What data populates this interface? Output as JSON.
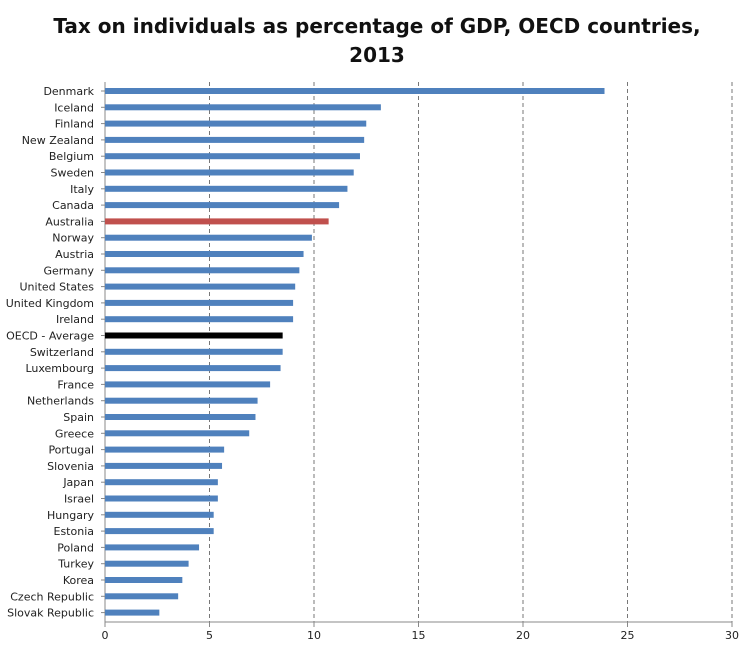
{
  "title_line1": "Tax on individuals as percentage of GDP, OECD countries,",
  "title_line2": "2013",
  "chart_data": {
    "type": "bar",
    "orientation": "horizontal",
    "title": "Tax on individuals as percentage of GDP, OECD countries, 2013",
    "xlabel": "",
    "ylabel": "",
    "xlim": [
      0,
      30
    ],
    "xticks": [
      0,
      5,
      10,
      15,
      20,
      25,
      30
    ],
    "grid": "vertical dashed",
    "categories": [
      "Denmark",
      "Iceland",
      "Finland",
      "New Zealand",
      "Belgium",
      "Sweden",
      "Italy",
      "Canada",
      "Australia",
      "Norway",
      "Austria",
      "Germany",
      "United States",
      "United Kingdom",
      "Ireland",
      "OECD - Average",
      "Switzerland",
      "Luxembourg",
      "France",
      "Netherlands",
      "Spain",
      "Greece",
      "Portugal",
      "Slovenia",
      "Japan",
      "Israel",
      "Hungary",
      "Estonia",
      "Poland",
      "Turkey",
      "Korea",
      "Czech Republic",
      "Slovak Republic"
    ],
    "values": [
      23.9,
      13.2,
      12.5,
      12.4,
      12.2,
      11.9,
      11.6,
      11.2,
      10.7,
      9.9,
      9.5,
      9.3,
      9.1,
      9.0,
      9.0,
      8.5,
      8.5,
      8.4,
      7.9,
      7.3,
      7.2,
      6.9,
      5.7,
      5.6,
      5.4,
      5.4,
      5.2,
      5.2,
      4.5,
      4.0,
      3.7,
      3.5,
      2.6
    ],
    "colors": {
      "default": "#4f81bd",
      "Australia": "#c0504d",
      "OECD - Average": "#000000"
    }
  }
}
